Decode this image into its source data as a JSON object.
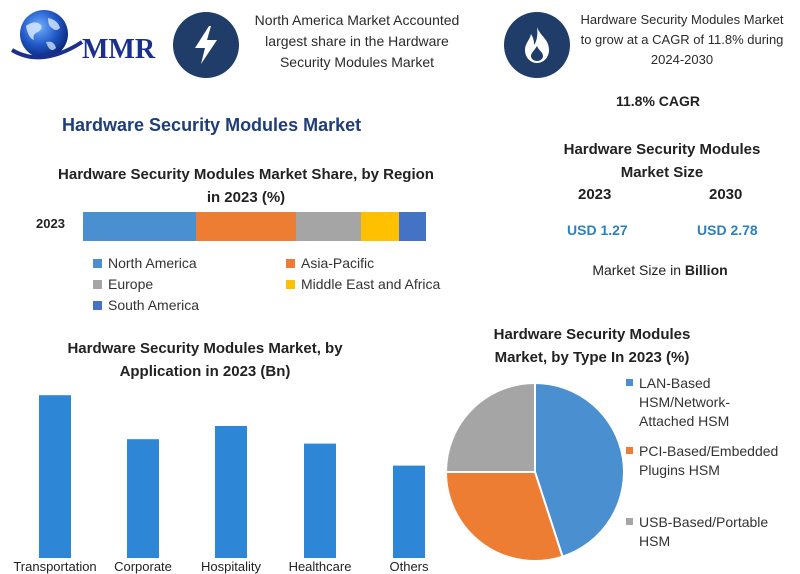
{
  "logo": {
    "text": "MMR"
  },
  "header": {
    "headline_1": "North America Market Accounted largest share in the Hardware Security Modules Market",
    "headline_2": "Hardware Security Modules Market to grow at a CAGR of 11.8% during 2024-2030",
    "icon_1": "lightning-icon",
    "icon_2": "flame-icon"
  },
  "main_title": "Hardware Security Modules Market",
  "cagr_label": "11.8% CAGR",
  "market_size": {
    "title": "Hardware Security Modules Market Size",
    "year_1": "2023",
    "year_2": "2030",
    "value_1": "USD 1.27",
    "value_2": "USD 2.78",
    "unit_prefix": "Market Size in ",
    "unit_bold": "Billion"
  },
  "colors": {
    "north_america": "#4a8fd0",
    "asia_pacific": "#ec7d33",
    "europe": "#a5a5a5",
    "mea": "#ffc000",
    "south_america": "#4472c4",
    "bars": "#2e86d6",
    "navy": "#1f3d68"
  },
  "chart_data": [
    {
      "type": "bar",
      "orientation": "horizontal-stacked",
      "title": "Hardware Security Modules Market Share, by Region in 2023 (%)",
      "categories": [
        "2023"
      ],
      "series": [
        {
          "name": "North America",
          "values": [
            33
          ],
          "color": "#4a8fd0"
        },
        {
          "name": "Asia-Pacific",
          "values": [
            29
          ],
          "color": "#ec7d33"
        },
        {
          "name": "Europe",
          "values": [
            19
          ],
          "color": "#a5a5a5"
        },
        {
          "name": "Middle East and Africa",
          "values": [
            11
          ],
          "color": "#ffc000"
        },
        {
          "name": "South America",
          "values": [
            8
          ],
          "color": "#4472c4"
        }
      ],
      "legend": "bottom"
    },
    {
      "type": "bar",
      "title": "Hardware Security Modules Market, by Application in 2023 (Bn)",
      "categories": [
        "Transportation",
        "Corporate",
        "Hospitality",
        "Healthcare",
        "Others"
      ],
      "values": [
        0.37,
        0.27,
        0.3,
        0.26,
        0.21
      ],
      "ylim": [
        0,
        0.4
      ],
      "grid": false
    },
    {
      "type": "pie",
      "title": "Hardware Security Modules Market, by Type In 2023 (%)",
      "categories": [
        "LAN-Based HSM/Network-Attached HSM",
        "PCI-Based/Embedded Plugins HSM",
        "USB-Based/Portable HSM"
      ],
      "values": [
        45,
        30,
        25
      ],
      "colors": [
        "#4a8fd0",
        "#ec7d33",
        "#a5a5a5"
      ],
      "legend": "right"
    }
  ]
}
